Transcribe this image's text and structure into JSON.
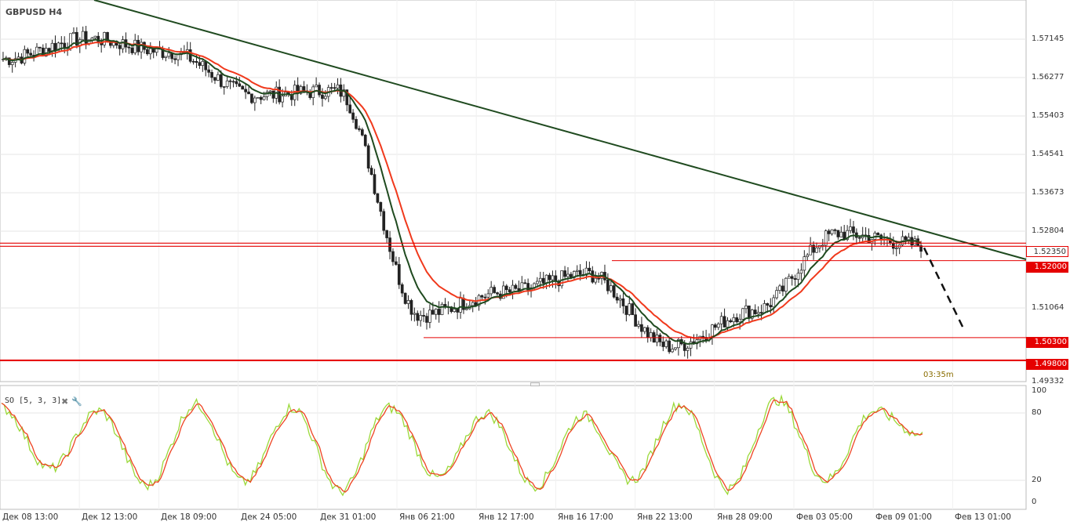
{
  "symbol": "GBPUSD H4",
  "timer": "03:35m",
  "colors": {
    "ema_fast": "#1f4a1f",
    "ema_slow": "#f0391c",
    "trend": "#1f4a1f",
    "level": "#e50000",
    "stoch_k": "#9bd93a",
    "stoch_d": "#ee4422",
    "candle": "#222222",
    "grid": "#e6e6e6"
  },
  "price_axis": [
    "1.57145",
    "1.56277",
    "1.55403",
    "1.54541",
    "1.53673",
    "1.52804",
    "1.51064",
    "1.49332"
  ],
  "price_tags": {
    "current": "1.52350",
    "level1": "1.52000",
    "level2": "1.50300",
    "level3": "1.49800"
  },
  "so": {
    "label": "SO [5, 3, 3]",
    "axis": [
      "100",
      "80",
      "20",
      "0"
    ]
  },
  "x_axis": [
    "Дек 08 13:00",
    "Дек 12 13:00",
    "Дек 18 09:00",
    "Дек 24 05:00",
    "Дек 31 01:00",
    "Янв 06 21:00",
    "Янв 12 17:00",
    "Янв 16 17:00",
    "Янв 22 13:00",
    "Янв 28 09:00",
    "Фев 03 05:00",
    "Фев 09 01:00",
    "Фев 13 01:00"
  ],
  "chart_data": {
    "type": "line",
    "title": "GBPUSD H4",
    "x": [
      "Дек 08 13:00",
      "Дек 12 13:00",
      "Дек 18 09:00",
      "Дек 24 05:00",
      "Дек 31 01:00",
      "Янв 06 21:00",
      "Янв 12 17:00",
      "Янв 16 17:00",
      "Янв 22 13:00",
      "Янв 28 09:00",
      "Фев 03 05:00",
      "Фев 09 01:00"
    ],
    "ylim": [
      1.4933,
      1.5775
    ],
    "series": [
      {
        "values": [
          1.5645,
          1.569,
          1.566,
          1.5565,
          1.5575,
          1.508,
          1.513,
          1.517,
          1.501,
          1.509,
          1.526,
          1.5235
        ]
      }
    ],
    "levels": [
      1.5235,
      1.52,
      1.503,
      1.498
    ],
    "oscillator": {
      "name": "SO [5, 3, 3]",
      "ylim": [
        0,
        100
      ],
      "levels": [
        80,
        20
      ],
      "series": [
        {
          "values": [
            85,
            30,
            82,
            15,
            88,
            18,
            85,
            10,
            85,
            22,
            80,
            15,
            78,
            20,
            88,
            12,
            92,
            20,
            82,
            60
          ]
        }
      ]
    }
  }
}
